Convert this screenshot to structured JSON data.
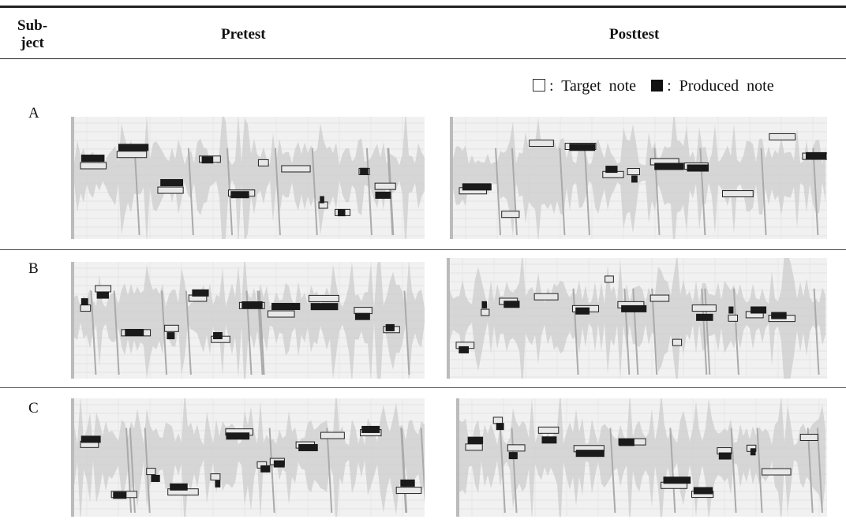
{
  "header": {
    "subject": [
      "Sub-",
      "ject"
    ],
    "pretest": "Pretest",
    "posttest": "Posttest"
  },
  "legend": {
    "target": ": Target note",
    "produced": ": Produced note"
  },
  "rows": [
    {
      "label": "A"
    },
    {
      "label": "B"
    },
    {
      "label": "C"
    }
  ]
}
